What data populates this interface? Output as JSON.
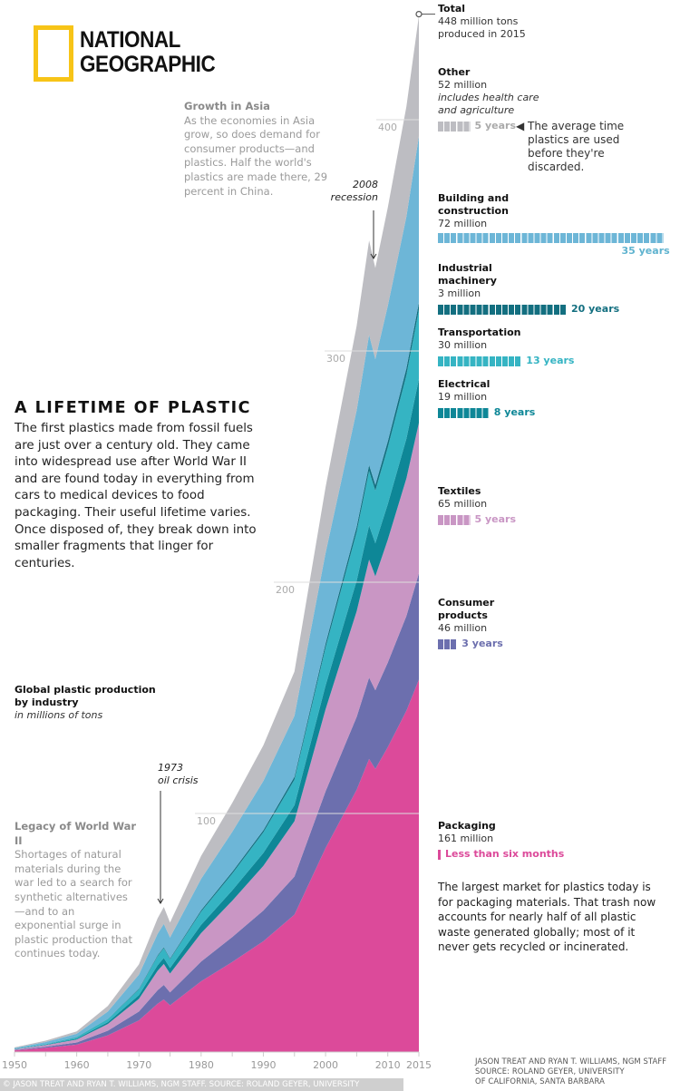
{
  "brand": {
    "line1": "NATIONAL",
    "line2": "GEOGRAPHIC",
    "color": "#f7c417"
  },
  "title": "A LIFETIME OF PLASTIC",
  "intro": "The first plastics made from fossil fuels are just over a century old. They came into widespread use after World War II and are found today in everything from cars to medical devices to food packaging. Their useful lifetime varies. Once disposed of, they break down into smaller fragments that linger for centuries.",
  "growth_asia": {
    "heading": "Growth in Asia",
    "text": "As the economies in Asia grow, so does demand for consumer products—and plastics. Half the world's plastics are made there, 29 percent in China."
  },
  "legacy": {
    "heading": "Legacy of World War II",
    "text": "Shortages of natural materials during the war led to a search for synthetic alternatives—and to an exponential surge in plastic production that continues today."
  },
  "packaging_note": "The largest market for plastics today is for packaging materials. That trash now accounts for nearly half of all plastic waste generated globally; most of it never gets recycled or incinerated.",
  "lifetime_note": "The average time plastics are used before they're discarded.",
  "credit": [
    "JASON TREAT AND RYAN T. WILLIAMS, NGM STAFF",
    "SOURCE: ROLAND GEYER, UNIVERSITY",
    "OF CALIFORNIA, SANTA BARBARA"
  ],
  "watermark": "© JASON TREAT AND RYAN T. WILLIAMS, NGM STAFF. SOURCE: ROLAND GEYER, UNIVERSITY",
  "total_label": {
    "heading": "Total",
    "line1": "448 million tons",
    "line2": "produced in 2015"
  },
  "chart_data": {
    "type": "area",
    "stacked": true,
    "title": "Global plastic production by industry",
    "subtitle": "in millions of tons",
    "xlim": [
      1950,
      2015
    ],
    "ylim": [
      0,
      450
    ],
    "x_ticks": [
      1950,
      1960,
      1970,
      1980,
      1990,
      2000,
      2010,
      2015
    ],
    "y_ticks": [
      100,
      200,
      300,
      400
    ],
    "grid": false,
    "annotations": [
      {
        "year": 1973,
        "label1": "1973",
        "label2": "oil crisis"
      },
      {
        "year": 2008,
        "label1": "2008",
        "label2": "recession"
      }
    ],
    "x": [
      1950,
      1955,
      1960,
      1965,
      1970,
      1973,
      1974,
      1975,
      1980,
      1985,
      1990,
      1995,
      2000,
      2005,
      2007,
      2008,
      2010,
      2013,
      2015
    ],
    "series": [
      {
        "name": "Packaging",
        "amount": "161 million",
        "lifetime": "Less than six months",
        "lifetime_years": 0.5,
        "color": "#dc4a9a",
        "values": [
          0.7,
          1.8,
          3.2,
          7.2,
          13.7,
          20.9,
          22.7,
          20.2,
          30.6,
          38.9,
          47.9,
          59.4,
          88.2,
          113.4,
          126.7,
          122.4,
          131.8,
          147.6,
          161
        ]
      },
      {
        "name": "Consumer products",
        "amount": "46 million",
        "lifetime": "3 years",
        "lifetime_years": 3,
        "color": "#6c6fae",
        "values": [
          0.2,
          0.5,
          0.9,
          2,
          3.8,
          5.8,
          6.3,
          5.6,
          8.5,
          10.8,
          13.3,
          16.5,
          24.5,
          31.5,
          35.2,
          34,
          36.6,
          41,
          46
        ]
      },
      {
        "name": "Textiles",
        "amount": "65 million",
        "lifetime": "5 years",
        "lifetime_years": 5,
        "color": "#c996c4",
        "values": [
          0.3,
          0.7,
          1.3,
          2.9,
          5.5,
          8.4,
          9.1,
          8.1,
          12.3,
          15.7,
          19.3,
          23.9,
          35.5,
          45.7,
          51,
          49.3,
          53.1,
          59.5,
          65
        ]
      },
      {
        "name": "Electrical",
        "amount": "19 million",
        "lifetime": "8 years",
        "lifetime_years": 8,
        "color": "#0e8797",
        "values": [
          0.1,
          0.2,
          0.4,
          0.8,
          1.6,
          2.4,
          2.6,
          2.4,
          3.6,
          4.5,
          5.6,
          6.9,
          10.3,
          13.2,
          14.8,
          14.3,
          15.4,
          17.2,
          19
        ]
      },
      {
        "name": "Transportation",
        "amount": "30 million",
        "lifetime": "13 years",
        "lifetime_years": 13,
        "color": "#35b4c3",
        "values": [
          0.1,
          0.3,
          0.6,
          1.3,
          2.5,
          3.9,
          4.2,
          3.8,
          5.7,
          7.2,
          8.9,
          11.1,
          16.4,
          21.1,
          23.6,
          22.8,
          24.5,
          27.5,
          30
        ]
      },
      {
        "name": "Industrial machinery",
        "amount": "3 million",
        "lifetime": "20 years",
        "lifetime_years": 20,
        "color": "#136f80",
        "values": [
          0,
          0,
          0.1,
          0.1,
          0.3,
          0.4,
          0.4,
          0.4,
          0.6,
          0.8,
          0.9,
          1.2,
          1.7,
          2.2,
          2.5,
          2.4,
          2.6,
          2.9,
          3
        ]
      },
      {
        "name": "Building and construction",
        "amount": "72 million",
        "lifetime": "35 years",
        "lifetime_years": 35,
        "color": "#6db6d7",
        "values": [
          0.3,
          0.8,
          1.4,
          3.2,
          6.1,
          9.3,
          10.1,
          9,
          13.6,
          17.3,
          21.3,
          26.4,
          39.2,
          50.4,
          56.3,
          54.4,
          58.6,
          65.6,
          72
        ]
      },
      {
        "name": "Other",
        "amount": "52 million",
        "note": "includes health care and agriculture",
        "lifetime": "5 years",
        "lifetime_years": 5,
        "color": "#bdbdc2",
        "values": [
          0.3,
          0.6,
          1,
          2.4,
          4.4,
          6.7,
          7.3,
          6.5,
          9.9,
          12.5,
          15.4,
          19.1,
          28.4,
          36.5,
          40.8,
          39.4,
          42.5,
          47.6,
          52
        ]
      }
    ]
  }
}
